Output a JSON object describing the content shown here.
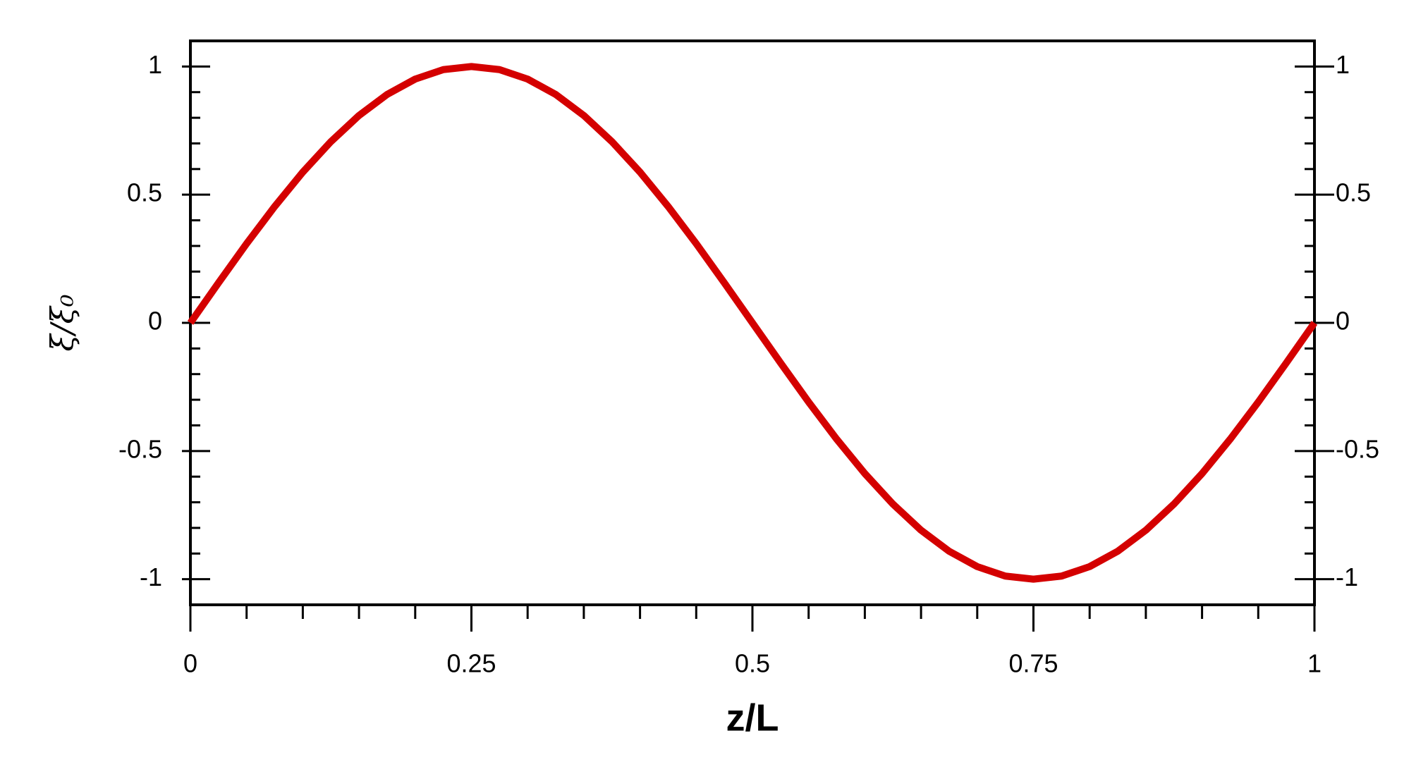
{
  "chart_data": {
    "type": "line",
    "xlabel": "z/L",
    "ylabel": "ξ/ξ₀",
    "x": [
      0,
      0.025,
      0.05,
      0.075,
      0.1,
      0.125,
      0.15,
      0.175,
      0.2,
      0.225,
      0.25,
      0.275,
      0.3,
      0.325,
      0.35,
      0.375,
      0.4,
      0.425,
      0.45,
      0.475,
      0.5,
      0.525,
      0.55,
      0.575,
      0.6,
      0.625,
      0.65,
      0.675,
      0.7,
      0.725,
      0.75,
      0.775,
      0.8,
      0.825,
      0.85,
      0.875,
      0.9,
      0.925,
      0.95,
      0.975,
      1
    ],
    "series": [
      {
        "color": "#d40000",
        "values": [
          0,
          0.156,
          0.309,
          0.454,
          0.588,
          0.707,
          0.809,
          0.891,
          0.951,
          0.988,
          1,
          0.988,
          0.951,
          0.891,
          0.809,
          0.707,
          0.588,
          0.454,
          0.309,
          0.156,
          0,
          -0.156,
          -0.309,
          -0.454,
          -0.588,
          -0.707,
          -0.809,
          -0.891,
          -0.951,
          -0.988,
          -1,
          -0.988,
          -0.951,
          -0.891,
          -0.809,
          -0.707,
          -0.588,
          -0.454,
          -0.309,
          -0.156,
          0
        ]
      }
    ],
    "xlim": [
      0,
      1
    ],
    "ylim": [
      -1.1,
      1.1
    ],
    "xticks": [
      0,
      0.25,
      0.5,
      0.75,
      1
    ],
    "yticks": [
      -1,
      -0.5,
      0,
      0.5,
      1
    ],
    "xminorticks": [
      0.05,
      0.1,
      0.15,
      0.2,
      0.3,
      0.35,
      0.4,
      0.45,
      0.55,
      0.6,
      0.65,
      0.7,
      0.8,
      0.85,
      0.9,
      0.95
    ],
    "yminorticks": [
      -0.9,
      -0.8,
      -0.7,
      -0.6,
      -0.4,
      -0.3,
      -0.2,
      -0.1,
      0.1,
      0.2,
      0.3,
      0.4,
      0.6,
      0.7,
      0.8,
      0.9
    ],
    "grid": false
  }
}
